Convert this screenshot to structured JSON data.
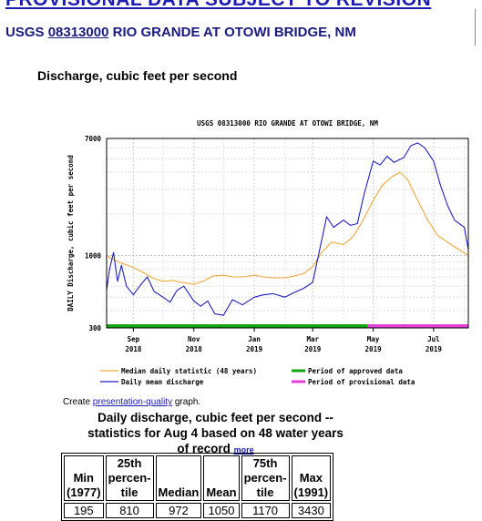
{
  "banner": "PROVISIONAL DATA SUBJECT TO REVISION",
  "station": {
    "agency": "USGS",
    "site_no": "08313000",
    "name": "RIO GRANDE AT OTOWI BRIDGE, NM"
  },
  "parameter": "Discharge, cubic feet per second",
  "create": {
    "prefix": "Create",
    "link": "presentation-quality",
    "suffix": "graph."
  },
  "stats_title": {
    "line1": "Daily discharge, cubic feet per second --",
    "line2": "statistics for Aug 4 based on 48 water years",
    "line3": "of record",
    "more": "more"
  },
  "stats_table": {
    "headers": [
      [
        "Min",
        "(1977)"
      ],
      [
        "25th",
        "percen-",
        "tile"
      ],
      [
        "Median"
      ],
      [
        "Mean"
      ],
      [
        "75th",
        "percen-",
        "tile"
      ],
      [
        "Max",
        "(1991)"
      ]
    ],
    "values": [
      "195",
      "810",
      "972",
      "1050",
      "1170",
      "3430"
    ]
  },
  "chart_data": {
    "type": "line",
    "title": "USGS 08313000 RIO GRANDE AT OTOWI BRIDGE, NM",
    "ylabel": "DAILY Discharge, cubic feet per second",
    "xlabel": "",
    "yscale": "log",
    "ylim": [
      300,
      7000
    ],
    "yticks": [
      "7000",
      "1000",
      "300"
    ],
    "xlim": [
      "2018-08-05",
      "2019-08-05"
    ],
    "xticks": [
      {
        "date": "2018-09-01",
        "label1": "Sep",
        "label2": "2018"
      },
      {
        "date": "2018-11-01",
        "label1": "Nov",
        "label2": "2018"
      },
      {
        "date": "2019-01-01",
        "label1": "Jan",
        "label2": "2019"
      },
      {
        "date": "2019-03-01",
        "label1": "Mar",
        "label2": "2019"
      },
      {
        "date": "2019-05-01",
        "label1": "May",
        "label2": "2019"
      },
      {
        "date": "2019-07-01",
        "label1": "Jul",
        "label2": "2019"
      }
    ],
    "grid": true,
    "legend_position": "bottom",
    "series": [
      {
        "name": "Median daily statistic (48 years)",
        "color": "#f2a73b",
        "x": [
          "2018-08-05",
          "2018-08-10",
          "2018-08-20",
          "2018-09-01",
          "2018-09-10",
          "2018-09-20",
          "2018-10-01",
          "2018-10-10",
          "2018-10-20",
          "2018-11-01",
          "2018-11-10",
          "2018-11-20",
          "2018-12-01",
          "2018-12-10",
          "2018-12-20",
          "2019-01-01",
          "2019-01-10",
          "2019-01-20",
          "2019-02-01",
          "2019-02-10",
          "2019-02-20",
          "2019-03-01",
          "2019-03-10",
          "2019-03-20",
          "2019-04-01",
          "2019-04-10",
          "2019-04-20",
          "2019-05-01",
          "2019-05-10",
          "2019-05-20",
          "2019-05-28",
          "2019-06-05",
          "2019-06-15",
          "2019-06-25",
          "2019-07-05",
          "2019-07-15",
          "2019-07-25",
          "2019-08-05"
        ],
        "y": [
          1000,
          950,
          880,
          820,
          760,
          690,
          650,
          660,
          640,
          620,
          650,
          710,
          720,
          700,
          700,
          720,
          700,
          690,
          690,
          710,
          740,
          830,
          1050,
          1250,
          1200,
          1350,
          1750,
          2500,
          3200,
          3700,
          4000,
          3500,
          2500,
          1800,
          1400,
          1250,
          1120,
          1000
        ]
      },
      {
        "name": "Daily mean discharge",
        "color": "#2020c0",
        "x": [
          "2018-08-05",
          "2018-08-08",
          "2018-08-12",
          "2018-08-16",
          "2018-08-20",
          "2018-08-25",
          "2018-09-01",
          "2018-09-08",
          "2018-09-15",
          "2018-09-22",
          "2018-10-01",
          "2018-10-08",
          "2018-10-15",
          "2018-10-22",
          "2018-11-01",
          "2018-11-08",
          "2018-11-15",
          "2018-11-22",
          "2018-12-01",
          "2018-12-10",
          "2018-12-20",
          "2019-01-01",
          "2019-01-10",
          "2019-01-20",
          "2019-02-01",
          "2019-02-10",
          "2019-02-20",
          "2019-03-01",
          "2019-03-08",
          "2019-03-15",
          "2019-03-22",
          "2019-04-01",
          "2019-04-08",
          "2019-04-15",
          "2019-04-22",
          "2019-05-01",
          "2019-05-08",
          "2019-05-15",
          "2019-05-22",
          "2019-06-01",
          "2019-06-08",
          "2019-06-15",
          "2019-06-22",
          "2019-07-01",
          "2019-07-08",
          "2019-07-15",
          "2019-07-22",
          "2019-08-01",
          "2019-08-05"
        ],
        "y": [
          560,
          800,
          1050,
          650,
          850,
          600,
          520,
          610,
          700,
          550,
          500,
          460,
          560,
          600,
          470,
          430,
          470,
          380,
          370,
          480,
          440,
          500,
          520,
          530,
          500,
          540,
          580,
          640,
          1100,
          1900,
          1600,
          1800,
          1650,
          1700,
          2800,
          4800,
          4500,
          5200,
          4700,
          5100,
          6200,
          6500,
          6000,
          4800,
          3200,
          2300,
          1800,
          1600,
          1100
        ]
      }
    ],
    "periods": [
      {
        "name": "Period of approved data",
        "color": "#11a511",
        "from": "2018-08-05",
        "to": "2019-04-25"
      },
      {
        "name": "Period of provisional data",
        "color": "#e040d8",
        "from": "2019-04-25",
        "to": "2019-08-05"
      }
    ]
  }
}
